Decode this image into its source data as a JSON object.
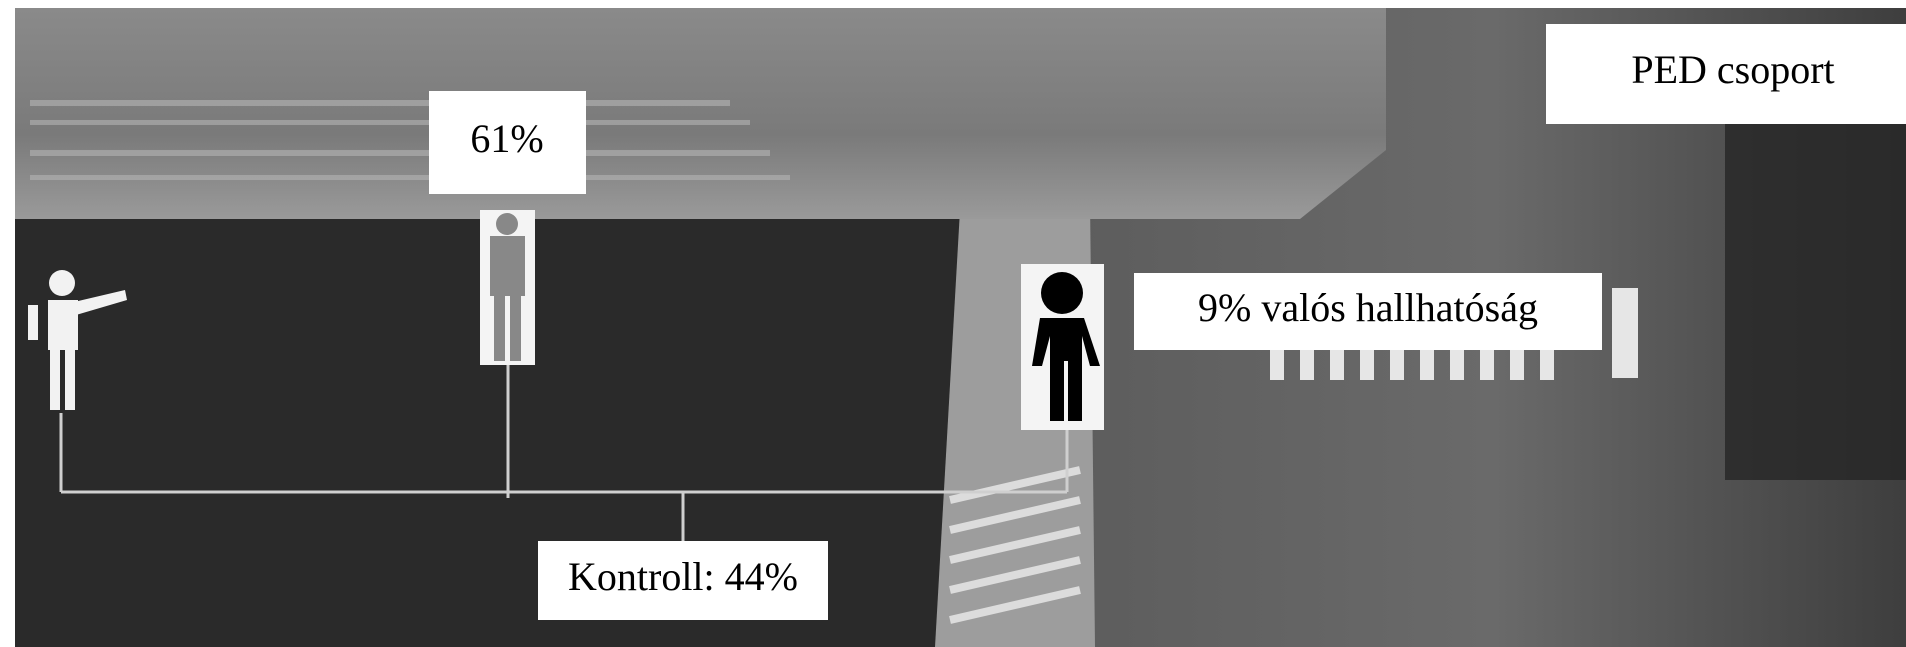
{
  "title": "PED csoport",
  "labels": {
    "standing": "61%",
    "listening": "9% valós hallhatóság",
    "control": "Kontroll: 44%"
  }
}
